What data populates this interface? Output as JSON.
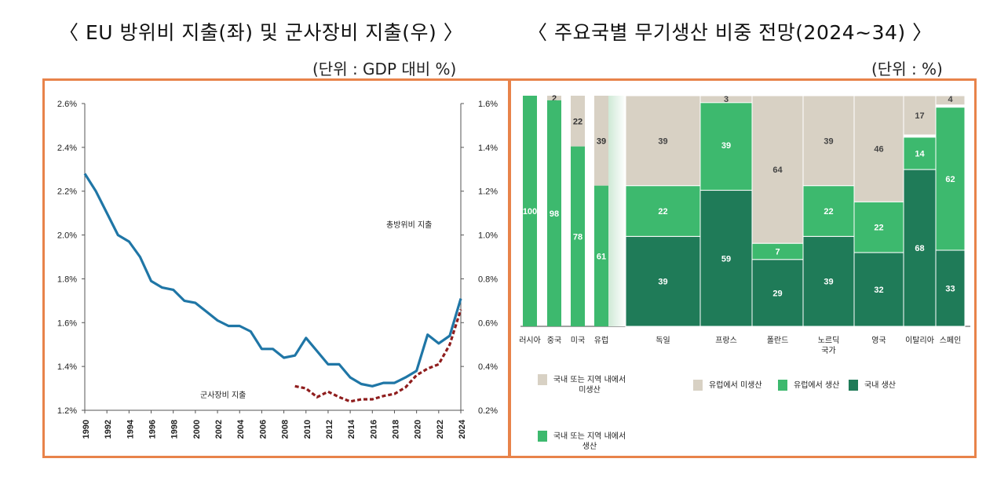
{
  "header": {
    "left_title": "〈 EU 방위비 지출(좌) 및 군사장비 지출(우) 〉",
    "left_unit": "(단위 : GDP 대비 %)",
    "right_title": "〈 주요국별 무기생산 비중 전망(2024~34) 〉",
    "right_unit": "(단위 : %)"
  },
  "colors": {
    "frame": "#e8834a",
    "defense_line": "#1f76a6",
    "equipment_line": "#8f1d1d",
    "beige": "#d8d1c4",
    "light_green": "#3db96e",
    "dark_green": "#1f7b58"
  },
  "chart_data": [
    {
      "type": "line",
      "title": "EU 방위비 지출(좌) 및 군사장비 지출(우)",
      "x_ticks": [
        "1990",
        "1992",
        "1994",
        "1996",
        "1998",
        "2000",
        "2002",
        "2004",
        "2006",
        "2008",
        "2010",
        "2012",
        "2014",
        "2016",
        "2018",
        "2020",
        "2022",
        "2024"
      ],
      "y_left_ticks": [
        "2.6%",
        "2.4%",
        "2.2%",
        "2.0%",
        "1.8%",
        "1.6%",
        "1.4%",
        "1.2%"
      ],
      "y_right_ticks": [
        "1.6%",
        "1.4%",
        "1.2%",
        "1.0%",
        "0.8%",
        "0.6%",
        "0.4%",
        "0.2%"
      ],
      "ylim_left": [
        1.2,
        2.6
      ],
      "ylim_right": [
        0.2,
        1.6
      ],
      "grid": false,
      "series": [
        {
          "name": "총방위비 지출",
          "axis": "left",
          "style": "solid",
          "x": [
            1990,
            1991,
            1992,
            1993,
            1994,
            1995,
            1996,
            1997,
            1998,
            1999,
            2000,
            2001,
            2002,
            2003,
            2004,
            2005,
            2006,
            2007,
            2008,
            2009,
            2010,
            2011,
            2012,
            2013,
            2014,
            2015,
            2016,
            2017,
            2018,
            2019,
            2020,
            2021,
            2022,
            2023,
            2024
          ],
          "y": [
            2.28,
            2.2,
            2.1,
            2.0,
            1.97,
            1.9,
            1.79,
            1.76,
            1.75,
            1.7,
            1.69,
            1.65,
            1.61,
            1.585,
            1.585,
            1.56,
            1.48,
            1.48,
            1.44,
            1.45,
            1.53,
            1.47,
            1.41,
            1.41,
            1.35,
            1.32,
            1.31,
            1.325,
            1.325,
            1.35,
            1.38,
            1.545,
            1.505,
            1.54,
            1.71
          ]
        },
        {
          "name": "군사장비 지출",
          "axis": "right",
          "style": "dashed",
          "x": [
            2009,
            2010,
            2011,
            2012,
            2013,
            2014,
            2015,
            2016,
            2017,
            2018,
            2019,
            2020,
            2021,
            2022,
            2023,
            2024
          ],
          "y": [
            0.31,
            0.3,
            0.26,
            0.285,
            0.26,
            0.24,
            0.25,
            0.25,
            0.265,
            0.275,
            0.305,
            0.36,
            0.39,
            0.41,
            0.5,
            0.66
          ]
        }
      ]
    },
    {
      "type": "bar",
      "subtype": "stacked-mekko",
      "title": "주요국별 무기생산 비중 전망(2024~34)",
      "group1": {
        "categories": [
          "러시아",
          "중국",
          "미국",
          "유럽"
        ],
        "series": [
          {
            "name": "국내 또는 지역 내에서 생산",
            "values": [
              100,
              98,
              78,
              61
            ]
          },
          {
            "name": "국내 또는 지역 내에서 미생산",
            "values": [
              0,
              2,
              22,
              39
            ]
          }
        ]
      },
      "group2": {
        "categories": [
          "독일",
          "프랑스",
          "폴란드",
          "노르딕\n국가",
          "영국",
          "이탈리아",
          "스페인"
        ],
        "series": [
          {
            "name": "국내 생산",
            "values": [
              39,
              59,
              29,
              39,
              32,
              68,
              33
            ]
          },
          {
            "name": "유럽에서 생산",
            "values": [
              22,
              39,
              7,
              22,
              22,
              14,
              62
            ]
          },
          {
            "name": "유럽에서 미생산",
            "values": [
              39,
              3,
              64,
              39,
              46,
              17,
              4
            ]
          }
        ]
      },
      "legend": [
        {
          "label": "국내 또는 지역 내에서\n미생산",
          "color": "beige"
        },
        {
          "label": "국내 또는 지역 내에서\n생산",
          "color": "light_green"
        },
        {
          "label": "유럽에서 미생산",
          "color": "beige"
        },
        {
          "label": "유럽에서 생산",
          "color": "light_green"
        },
        {
          "label": "국내 생산",
          "color": "dark_green"
        }
      ]
    }
  ]
}
